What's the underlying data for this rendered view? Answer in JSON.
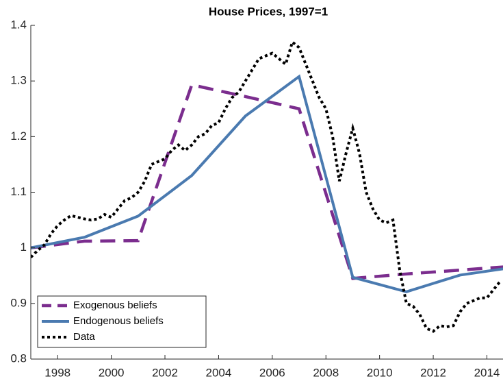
{
  "chart_data": {
    "type": "line",
    "title": "House Prices, 1997=1",
    "xlim": [
      1997,
      2014.6
    ],
    "ylim": [
      0.8,
      1.4
    ],
    "xticks": [
      1998,
      2000,
      2002,
      2004,
      2006,
      2008,
      2010,
      2012,
      2014
    ],
    "yticks": [
      0.8,
      0.9,
      1,
      1.1,
      1.2,
      1.3,
      1.4
    ],
    "legend": "lower left",
    "series": [
      {
        "name": "Exogenous beliefs",
        "color": "#7b2d8e",
        "dash": "dashed",
        "x": [
          1997,
          1999,
          2001,
          2003,
          2005,
          2007,
          2009,
          2011,
          2013,
          2015
        ],
        "values": [
          1.0,
          1.012,
          1.013,
          1.293,
          1.272,
          1.25,
          0.945,
          0.953,
          0.96,
          0.967
        ]
      },
      {
        "name": "Endogenous beliefs",
        "color": "#4a7ab0",
        "dash": "solid",
        "x": [
          1997,
          1999,
          2001,
          2003,
          2005,
          2007,
          2009,
          2011,
          2013,
          2015
        ],
        "values": [
          1.0,
          1.019,
          1.057,
          1.13,
          1.237,
          1.308,
          0.947,
          0.921,
          0.951,
          0.965
        ]
      },
      {
        "name": "Data",
        "color": "#000000",
        "dash": "dotted",
        "x": [
          1997,
          1997.25,
          1997.5,
          1997.75,
          1998,
          1998.25,
          1998.5,
          1998.75,
          1999,
          1999.25,
          1999.5,
          1999.75,
          2000,
          2000.25,
          2000.5,
          2000.75,
          2001,
          2001.25,
          2001.5,
          2001.75,
          2002,
          2002.25,
          2002.5,
          2002.75,
          2003,
          2003.25,
          2003.5,
          2003.75,
          2004,
          2004.25,
          2004.5,
          2004.75,
          2005,
          2005.25,
          2005.5,
          2005.75,
          2006,
          2006.25,
          2006.5,
          2006.75,
          2007,
          2007.25,
          2007.5,
          2007.75,
          2008,
          2008.25,
          2008.5,
          2008.75,
          2009,
          2009.25,
          2009.5,
          2009.75,
          2010,
          2010.25,
          2010.5,
          2010.75,
          2011,
          2011.25,
          2011.5,
          2011.75,
          2012,
          2012.25,
          2012.5,
          2012.75,
          2013,
          2013.25,
          2013.5,
          2013.75,
          2014,
          2014.25,
          2014.5
        ],
        "values": [
          0.983,
          0.995,
          1.005,
          1.025,
          1.04,
          1.05,
          1.058,
          1.055,
          1.052,
          1.05,
          1.052,
          1.06,
          1.055,
          1.07,
          1.085,
          1.09,
          1.1,
          1.12,
          1.15,
          1.155,
          1.16,
          1.175,
          1.185,
          1.175,
          1.185,
          1.2,
          1.205,
          1.22,
          1.225,
          1.25,
          1.27,
          1.28,
          1.3,
          1.32,
          1.34,
          1.345,
          1.35,
          1.34,
          1.33,
          1.37,
          1.36,
          1.33,
          1.3,
          1.27,
          1.25,
          1.2,
          1.12,
          1.17,
          1.215,
          1.17,
          1.1,
          1.07,
          1.05,
          1.045,
          1.05,
          0.96,
          0.9,
          0.895,
          0.88,
          0.855,
          0.85,
          0.86,
          0.858,
          0.86,
          0.885,
          0.9,
          0.905,
          0.91,
          0.91,
          0.925,
          0.94
        ]
      }
    ]
  }
}
